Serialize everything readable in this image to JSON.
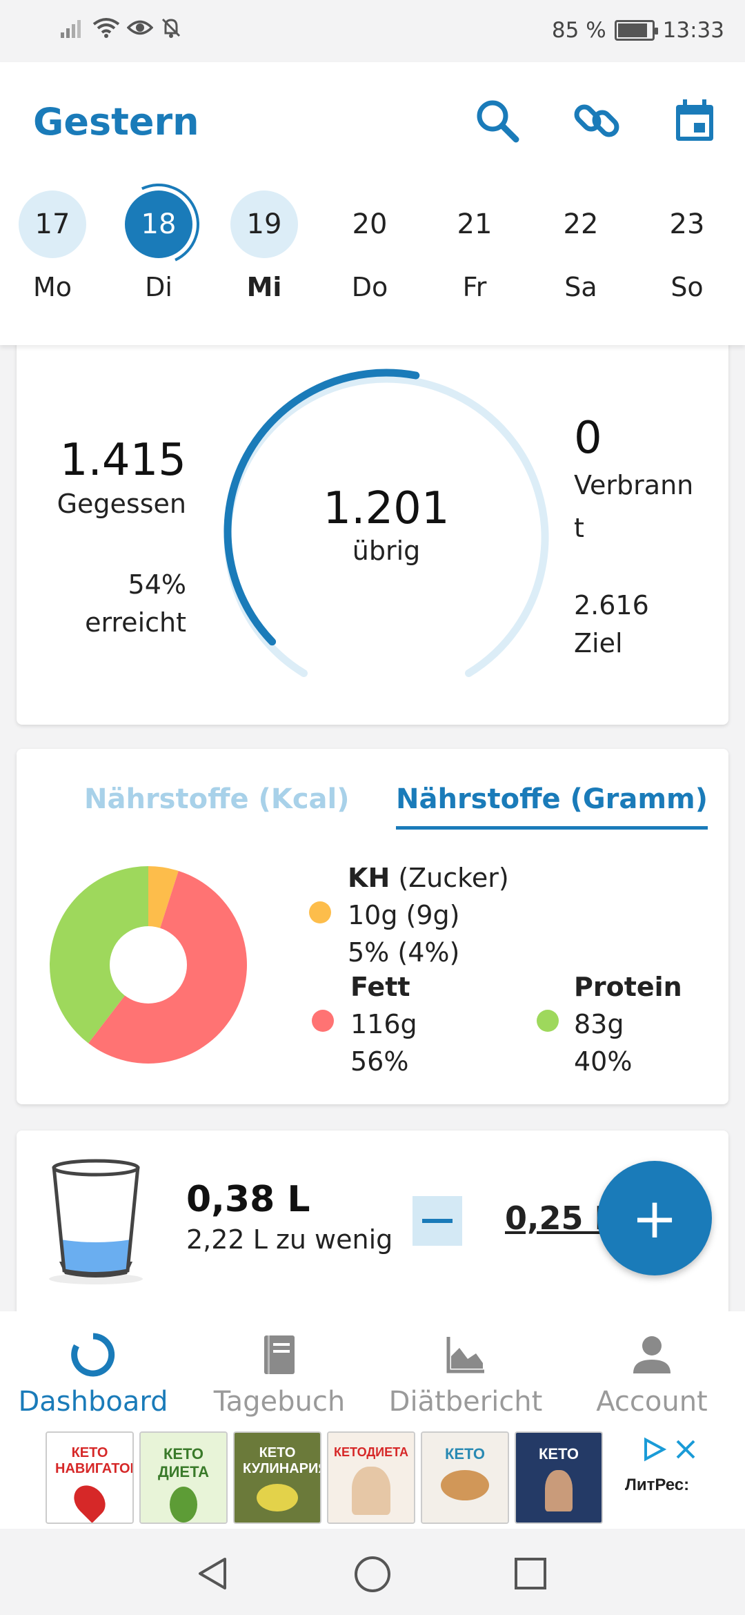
{
  "status_bar": {
    "battery": "85 %",
    "time": "13:33"
  },
  "header": {
    "title": "Gestern"
  },
  "week": [
    {
      "num": "17",
      "name": "Mo",
      "state": "light",
      "bold": false
    },
    {
      "num": "18",
      "name": "Di",
      "state": "active",
      "bold": false
    },
    {
      "num": "19",
      "name": "Mi",
      "state": "light",
      "bold": true
    },
    {
      "num": "20",
      "name": "Do",
      "state": "none",
      "bold": false
    },
    {
      "num": "21",
      "name": "Fr",
      "state": "none",
      "bold": false
    },
    {
      "num": "22",
      "name": "Sa",
      "state": "none",
      "bold": false
    },
    {
      "num": "23",
      "name": "So",
      "state": "none",
      "bold": false
    }
  ],
  "calories": {
    "eaten_value": "1.415",
    "eaten_label": "Gegessen",
    "achieved_percent": "54%",
    "achieved_label": "erreicht",
    "remaining_value": "1.201",
    "remaining_label": "übrig",
    "burned_value": "0",
    "burned_label_1": "Verbrann",
    "burned_label_2": "t",
    "goal_value": "2.616",
    "goal_label": "Ziel",
    "progress_fraction": 0.54
  },
  "nutrients": {
    "tab_kcal": "Nährstoffe (Kcal)",
    "tab_gram": "Nährstoffe (Gramm)",
    "carbs_title": "KH",
    "carbs_sub": " (Zucker)",
    "carbs_grams": "10g (9g)",
    "carbs_percent": "5% (4%)",
    "fat_title": "Fett",
    "fat_grams": "116g",
    "fat_percent": "56%",
    "protein_title": "Protein",
    "protein_grams": "83g",
    "protein_percent": "40%",
    "colors": {
      "carbs": "#fdbd4b",
      "fat": "#ff7373",
      "protein": "#9ed85c"
    }
  },
  "chart_data": {
    "type": "pie",
    "categories": [
      "KH",
      "Fett",
      "Protein"
    ],
    "values": [
      5,
      56,
      40
    ]
  },
  "water": {
    "amount": "0,38 L",
    "deficit": "2,22 L zu wenig",
    "step": "0,25 L"
  },
  "fab": {
    "label": "+"
  },
  "bottom_nav": [
    {
      "label": "Dashboard",
      "active": true
    },
    {
      "label": "Tagebuch",
      "active": false
    },
    {
      "label": "Diätbericht",
      "active": false
    },
    {
      "label": "Account",
      "active": false
    }
  ],
  "ad": {
    "brand": "ЛитРес:",
    "books": [
      "КЕТО НАВИГАТОР",
      "КЕТО ДИЕТА",
      "КЕТО КУЛИНАРИЯ",
      "КЕТОДИЕТА",
      "КЕТО",
      "КЕТО"
    ]
  }
}
